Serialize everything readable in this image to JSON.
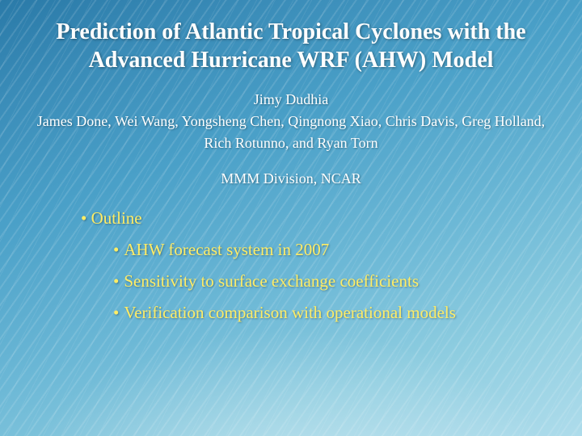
{
  "slide": {
    "title": "Prediction of Atlantic Tropical Cyclones with the Advanced Hurricane WRF (AHW) Model",
    "title_fontsize": 28,
    "title_color": "#ffffff",
    "authors": {
      "line1": "Jimy Dudhia",
      "line2": "James Done, Wei Wang, Yongsheng Chen, Qingnong Xiao, Chris Davis, Greg Holland,",
      "line3": "Rich Rotunno, and Ryan Torn",
      "fontsize": 18,
      "color": "#ffffff"
    },
    "division": "MMM Division, NCAR",
    "division_fontsize": 18,
    "outline": {
      "heading": "Outline",
      "items": [
        "AHW forecast system  in 2007",
        "Sensitivity to surface exchange coefficients",
        "Verification comparison with operational models"
      ],
      "fontsize": 21,
      "color": "#ffed66"
    },
    "background": {
      "gradient_colors": [
        "#2a7aa8",
        "#3a8cb8",
        "#4aa0c8",
        "#6cb8d6",
        "#8ecde0",
        "#aedceb"
      ],
      "stripe_color": "rgba(255,255,255,0.12)",
      "glow_color": "rgba(255,255,255,0.45)"
    }
  }
}
